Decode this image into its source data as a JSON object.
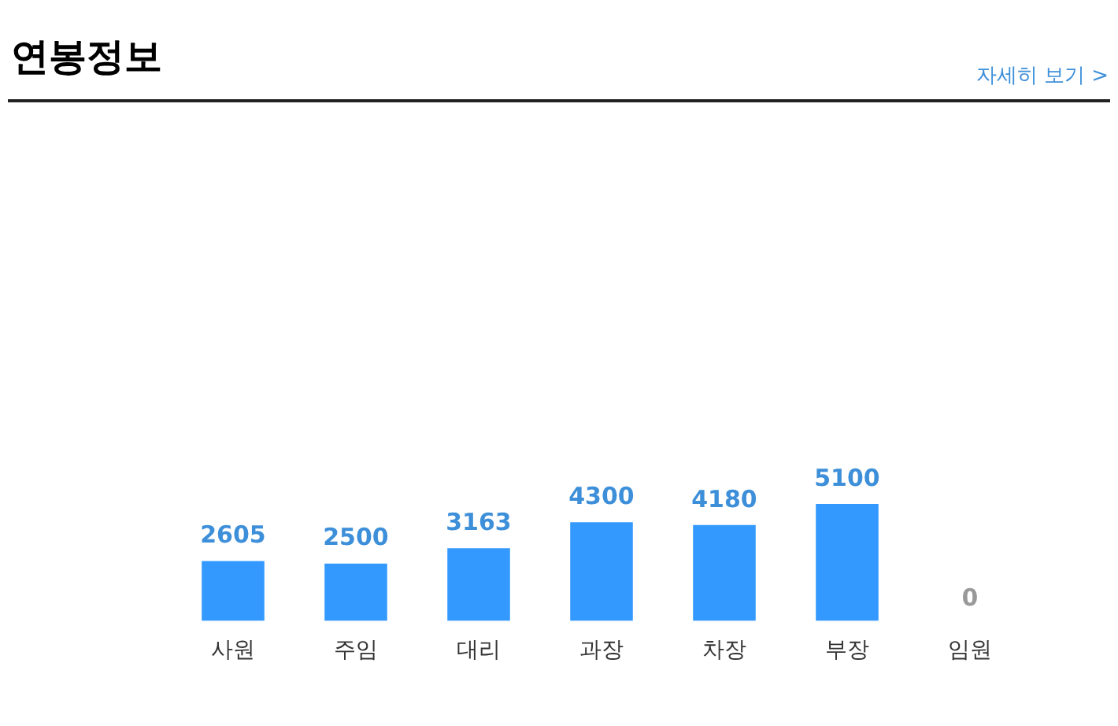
{
  "chart_data": {
    "type": "bar",
    "title": "연봉정보",
    "categories": [
      "사원",
      "주임",
      "대리",
      "과장",
      "차장",
      "부장",
      "임원"
    ],
    "values": [
      2605,
      2500,
      3163,
      4300,
      4180,
      5100,
      0
    ],
    "color": "#3399ff",
    "data_labels": true,
    "annotations": [
      "자세히 보기 >"
    ]
  }
}
